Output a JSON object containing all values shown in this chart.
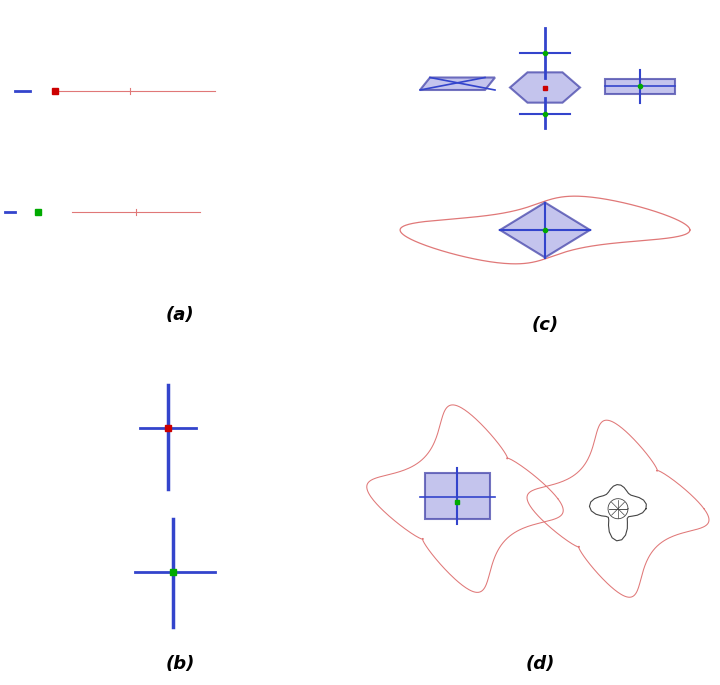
{
  "figsize": [
    7.2,
    6.85
  ],
  "dpi": 100,
  "bg_color": "#ffffff",
  "border_color": "#111111",
  "border_width": 2.0,
  "labels": [
    "(a)",
    "(b)",
    "(c)",
    "(d)"
  ],
  "label_fontsize": 13,
  "mesh_color": "#e07878",
  "mesh_color_dark": "#444444",
  "blue_color": "#3344cc",
  "green_color": "#00aa00",
  "red_point": "#cc0000",
  "purple_fill": "#b0b0e8",
  "purple_edge": "#4444aa"
}
